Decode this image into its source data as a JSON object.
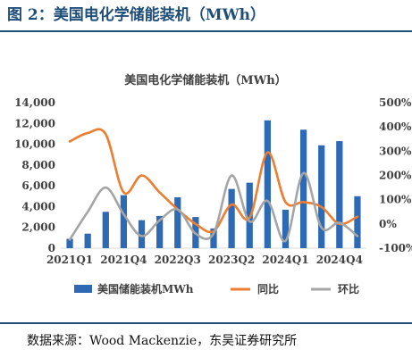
{
  "figure_title": "图 2：美国电化学储能装机（MWh）",
  "source": "数据来源：Wood Mackenzie，东吴证券研究所",
  "colors": {
    "bar": "#2e6ab3",
    "yoy": "#ed7d31",
    "qoq": "#a5a5a5",
    "title": "#1f4e79"
  },
  "chart_data": {
    "type": "bar",
    "title": "美国电化学储能装机（MWh）",
    "categories": [
      "2021Q1",
      "2021Q2",
      "2021Q3",
      "2021Q4",
      "2022Q1",
      "2022Q2",
      "2022Q3",
      "2022Q4",
      "2023Q1",
      "2023Q2",
      "2023Q3",
      "2023Q4",
      "2024Q1",
      "2024Q2",
      "2024Q3",
      "2024Q4",
      "2025Q1"
    ],
    "x_tick_labels": [
      "2021Q1",
      "2021Q4",
      "2022Q3",
      "2023Q2",
      "2024Q1",
      "2024Q4"
    ],
    "y_left": {
      "ticks": [
        "0",
        "2,000",
        "4,000",
        "6,000",
        "8,000",
        "10,000",
        "12,000",
        "14,000"
      ],
      "range": [
        0,
        14000
      ]
    },
    "y_right": {
      "ticks": [
        "-100%",
        "0%",
        "100%",
        "200%",
        "300%",
        "400%",
        "500%"
      ],
      "range": [
        -100,
        500
      ]
    },
    "series": [
      {
        "name": "美国储能装机MWh",
        "kind": "bar",
        "axis": "left",
        "values": [
          900,
          1400,
          3500,
          5100,
          2700,
          3100,
          4900,
          3000,
          1900,
          5700,
          6300,
          12300,
          3700,
          11400,
          9900,
          10300,
          5000
        ]
      },
      {
        "name": "同比",
        "kind": "line",
        "axis": "right",
        "values": [
          340,
          375,
          370,
          130,
          200,
          130,
          60,
          0,
          -30,
          80,
          25,
          295,
          90,
          90,
          70,
          0,
          30
        ]
      },
      {
        "name": "环比",
        "kind": "line",
        "axis": "right",
        "values": [
          -65,
          50,
          150,
          40,
          -50,
          15,
          60,
          -40,
          -40,
          200,
          10,
          95,
          -70,
          210,
          -15,
          5,
          -50
        ]
      }
    ],
    "legend_position": "bottom"
  }
}
